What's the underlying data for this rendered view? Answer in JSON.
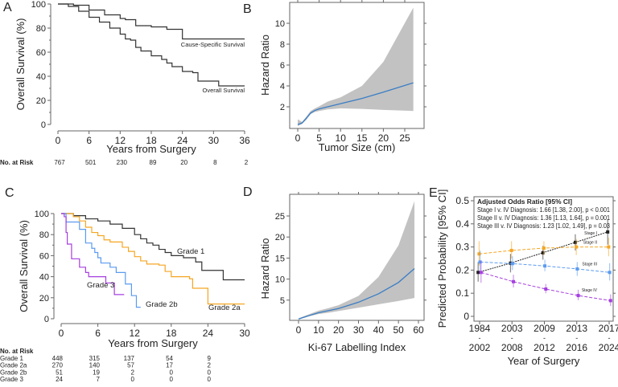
{
  "chart_data": [
    {
      "id": "A",
      "type": "line",
      "panel_label": "A",
      "xlabel": "Years from Surgery",
      "ylabel": "Overall Survival (%)",
      "xlim": [
        0,
        36
      ],
      "ylim": [
        0,
        100
      ],
      "xticks": [
        0,
        6,
        12,
        18,
        24,
        30,
        36
      ],
      "yticks": [
        0,
        20,
        40,
        60,
        80,
        100
      ],
      "series": [
        {
          "name": "Cause-Specific Survival",
          "color": "#333333",
          "step": true,
          "points": [
            [
              0,
              100
            ],
            [
              3,
              99
            ],
            [
              6,
              95
            ],
            [
              9,
              91
            ],
            [
              12,
              88
            ],
            [
              13,
              87
            ],
            [
              15,
              82
            ],
            [
              18,
              81
            ],
            [
              21,
              79
            ],
            [
              24,
              71
            ],
            [
              36,
              71
            ]
          ]
        },
        {
          "name": "Overall Survival",
          "color": "#333333",
          "step": true,
          "points": [
            [
              0,
              100
            ],
            [
              2,
              98
            ],
            [
              4,
              94
            ],
            [
              6,
              89
            ],
            [
              8,
              85
            ],
            [
              10,
              80
            ],
            [
              12,
              75
            ],
            [
              13,
              71
            ],
            [
              14,
              70
            ],
            [
              15,
              64
            ],
            [
              16,
              61
            ],
            [
              18,
              57
            ],
            [
              20,
              54
            ],
            [
              21,
              51
            ],
            [
              22,
              48
            ],
            [
              24,
              44
            ],
            [
              26,
              43
            ],
            [
              27,
              36
            ],
            [
              31,
              32
            ],
            [
              36,
              32
            ]
          ]
        }
      ],
      "risk_table": {
        "title": "No. at Risk",
        "rows": [
          {
            "label": "",
            "values": [
              767,
              501,
              230,
              89,
              20,
              8,
              2
            ]
          }
        ]
      }
    },
    {
      "id": "B",
      "type": "area",
      "panel_label": "B",
      "xlabel": "Tumor Size (cm)",
      "ylabel": "Hazard Ratio",
      "xlim": [
        0,
        27
      ],
      "ylim": [
        0,
        12
      ],
      "xticks": [
        0,
        5,
        10,
        15,
        20,
        25
      ],
      "yticks": [
        2,
        4,
        6,
        8,
        10
      ],
      "line_color": "#3a7dc4",
      "band_color": "#c2c2c2",
      "x": [
        0,
        1,
        2,
        3,
        4,
        5,
        7,
        10,
        15,
        20,
        27
      ],
      "hr": [
        0.3,
        0.45,
        0.9,
        1.4,
        1.65,
        1.8,
        2.0,
        2.3,
        2.8,
        3.4,
        4.3
      ],
      "lower": [
        0.15,
        0.35,
        0.75,
        1.3,
        1.5,
        1.6,
        1.75,
        1.85,
        1.8,
        1.7,
        1.6
      ],
      "upper": [
        0.8,
        0.55,
        1.05,
        1.6,
        1.85,
        2.05,
        2.5,
        2.9,
        4.0,
        6.3,
        11.5
      ]
    },
    {
      "id": "C",
      "type": "line",
      "panel_label": "C",
      "xlabel": "Years from Surgery",
      "ylabel": "Overall Survival (%)",
      "xlim": [
        0,
        30
      ],
      "ylim": [
        0,
        100
      ],
      "xticks": [
        0,
        6,
        12,
        18,
        24,
        30
      ],
      "yticks": [
        0,
        20,
        40,
        60,
        80,
        100
      ],
      "series": [
        {
          "name": "Grade 1",
          "color": "#333333",
          "step": true,
          "points": [
            [
              0,
              100
            ],
            [
              2,
              98
            ],
            [
              4,
              95
            ],
            [
              6,
              93
            ],
            [
              8,
              90
            ],
            [
              10,
              86
            ],
            [
              12,
              80
            ],
            [
              13,
              76
            ],
            [
              14,
              72
            ],
            [
              15,
              70
            ],
            [
              16,
              66
            ],
            [
              17,
              63
            ],
            [
              18,
              60
            ],
            [
              20,
              58
            ],
            [
              22,
              54
            ],
            [
              23,
              46
            ],
            [
              26.5,
              46
            ],
            [
              26.5,
              37
            ],
            [
              30,
              37
            ]
          ]
        },
        {
          "name": "Grade 2a",
          "color": "#f5a623",
          "step": true,
          "points": [
            [
              0,
              100
            ],
            [
              2,
              97
            ],
            [
              3,
              93
            ],
            [
              4,
              87
            ],
            [
              5,
              82
            ],
            [
              6,
              79
            ],
            [
              7,
              75
            ],
            [
              8,
              73
            ],
            [
              10,
              68
            ],
            [
              11,
              64
            ],
            [
              12,
              59
            ],
            [
              13,
              55
            ],
            [
              14,
              52
            ],
            [
              16,
              51
            ],
            [
              17,
              45
            ],
            [
              18,
              40
            ],
            [
              21,
              38
            ],
            [
              21.5,
              29
            ],
            [
              24,
              29
            ],
            [
              24,
              14
            ],
            [
              30,
              14
            ]
          ]
        },
        {
          "name": "Grade 2b",
          "color": "#5b9bef",
          "step": true,
          "points": [
            [
              0,
              100
            ],
            [
              0.8,
              92
            ],
            [
              2.5,
              92
            ],
            [
              3,
              85
            ],
            [
              4,
              72
            ],
            [
              5,
              67
            ],
            [
              5.5,
              63
            ],
            [
              6,
              58
            ],
            [
              6.5,
              53
            ],
            [
              8,
              49
            ],
            [
              9,
              44
            ],
            [
              10.5,
              33
            ],
            [
              11.5,
              22
            ],
            [
              12.3,
              11
            ],
            [
              13,
              11
            ]
          ]
        },
        {
          "name": "Grade 3",
          "color": "#a63fe0",
          "step": true,
          "points": [
            [
              0,
              100
            ],
            [
              0.5,
              97
            ],
            [
              0.8,
              82
            ],
            [
              1,
              71
            ],
            [
              1.7,
              57
            ],
            [
              3,
              49
            ],
            [
              4,
              44
            ],
            [
              4.5,
              40
            ],
            [
              7.3,
              34
            ],
            [
              8.7,
              23
            ],
            [
              10.3,
              23
            ]
          ]
        }
      ],
      "risk_table": {
        "title": "No. at Risk",
        "rows": [
          {
            "label": "Grade 1",
            "values": [
              448,
              315,
              137,
              54,
              9
            ]
          },
          {
            "label": "Grade 2a",
            "values": [
              270,
              140,
              57,
              17,
              2
            ]
          },
          {
            "label": "Grade 2b",
            "values": [
              51,
              19,
              2,
              0,
              0
            ]
          },
          {
            "label": "Grade 3",
            "values": [
              24,
              7,
              0,
              0,
              0
            ]
          }
        ]
      }
    },
    {
      "id": "D",
      "type": "area",
      "panel_label": "D",
      "xlabel": "Ki-67 Labelling Index",
      "ylabel": "Hazard Ratio",
      "xlim": [
        0,
        60
      ],
      "ylim": [
        0,
        29
      ],
      "xticks": [
        0,
        10,
        20,
        30,
        40,
        50,
        60
      ],
      "yticks": [
        5,
        10,
        15,
        20,
        25
      ],
      "line_color": "#3a7dc4",
      "band_color": "#c2c2c2",
      "x": [
        0,
        5,
        10,
        15,
        20,
        30,
        40,
        50,
        58
      ],
      "hr": [
        0.5,
        1.3,
        2.0,
        2.5,
        3.0,
        4.5,
        6.5,
        9.2,
        12.5
      ],
      "lower": [
        0.4,
        1.1,
        1.7,
        2.0,
        2.4,
        3.2,
        4.0,
        4.8,
        5.5
      ],
      "upper": [
        0.7,
        1.6,
        2.5,
        3.1,
        3.8,
        6.0,
        10.5,
        18.0,
        28.5
      ]
    },
    {
      "id": "E",
      "type": "line",
      "panel_label": "E",
      "xlabel": "Year of Surgery",
      "ylabel": "Predicted Probability [95% CI]",
      "categories": [
        [
          "1984",
          "-",
          "2002"
        ],
        [
          "2003",
          "-",
          "2008"
        ],
        [
          "2009",
          "-",
          "2012"
        ],
        [
          "2013",
          "-",
          "2016"
        ],
        [
          "2017",
          "-",
          "2024"
        ]
      ],
      "ylim": [
        0,
        0.5
      ],
      "yticks": [
        0,
        0.1,
        0.2,
        0.3,
        0.4,
        0.5
      ],
      "annotation": {
        "title": "Adjusted Odds Ratio [95% CI]",
        "lines": [
          "Stage I v. IV Diagnosis: 1.66 [1.38, 2.00], p < 0.001",
          "Stage II v. IV Diagnosis: 1.36 [1.13, 1.64], p = 0.001",
          "Stage III v. IV Diagnosis: 1.23 [1.02, 1.49], p = 0.03"
        ]
      },
      "series": [
        {
          "name": "Stage I",
          "color": "#222222",
          "values": [
            0.19,
            0.23,
            0.275,
            0.32,
            0.365
          ],
          "lower": [
            0.15,
            0.19,
            0.245,
            0.285,
            0.31
          ],
          "upper": [
            0.235,
            0.27,
            0.305,
            0.355,
            0.42
          ]
        },
        {
          "name": "Stage II",
          "color": "#f5a623",
          "values": [
            0.27,
            0.285,
            0.295,
            0.3,
            0.3
          ],
          "lower": [
            0.22,
            0.25,
            0.265,
            0.265,
            0.26
          ],
          "upper": [
            0.325,
            0.325,
            0.325,
            0.335,
            0.34
          ]
        },
        {
          "name": "Stage III",
          "color": "#5b9bef",
          "values": [
            0.235,
            0.228,
            0.218,
            0.205,
            0.19
          ],
          "lower": [
            0.19,
            0.2,
            0.195,
            0.175,
            0.155
          ],
          "upper": [
            0.285,
            0.26,
            0.245,
            0.235,
            0.23
          ]
        },
        {
          "name": "Stage IV",
          "color": "#a63fe0",
          "values": [
            0.19,
            0.15,
            0.118,
            0.09,
            0.068
          ],
          "lower": [
            0.145,
            0.125,
            0.1,
            0.07,
            0.045
          ],
          "upper": [
            0.24,
            0.18,
            0.14,
            0.115,
            0.095
          ]
        }
      ]
    }
  ]
}
